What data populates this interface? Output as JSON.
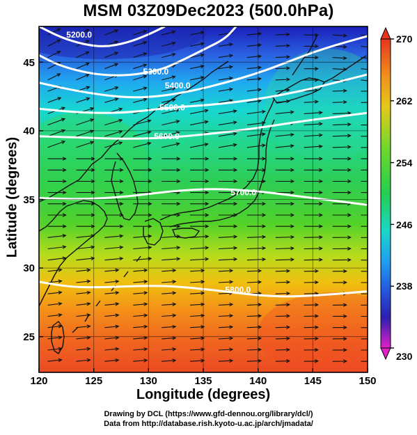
{
  "title": "MSM 03Z09Dec2023 (500.0hPa)",
  "xlabel": "Longitude (degrees)",
  "ylabel": "Latitude  (degrees)",
  "credit_line1": "Drawing by DCL (https://www.gfd-dennou.org/library/dcl/)",
  "credit_line2": "Data from http://database.rish.kyoto-u.ac.jp/arch/jmadata/",
  "colorbar": {
    "min": 230,
    "max": 270,
    "tick_labels": [
      "270",
      "262",
      "254",
      "246",
      "238",
      "230"
    ],
    "tick_values": [
      270,
      262,
      254,
      246,
      238,
      230
    ]
  },
  "chart_data": {
    "type": "heatmap",
    "field": "temperature (K) shading, geopotential height contours (m), wind vectors",
    "xlim": [
      120,
      150
    ],
    "ylim": [
      22.4,
      47.6
    ],
    "x_ticks": [
      120,
      125,
      130,
      135,
      140,
      145,
      150
    ],
    "x_tick_labels": [
      "120",
      "125",
      "130",
      "135",
      "140",
      "145",
      "150"
    ],
    "y_ticks": [
      25,
      30,
      35,
      40,
      45
    ],
    "y_tick_labels": [
      "25",
      "30",
      "35",
      "40",
      "45"
    ],
    "contours": [
      {
        "label": "5200.0",
        "value": 5200,
        "points": [
          [
            120,
            47.6
          ],
          [
            122,
            46.8
          ],
          [
            124,
            46.3
          ],
          [
            126,
            46.1
          ],
          [
            128,
            46.4
          ],
          [
            130,
            47.0
          ],
          [
            131.5,
            47.6
          ]
        ],
        "label_at": [
          122.5,
          47.0
        ]
      },
      {
        "label": "5300.0",
        "value": 5300,
        "points": [
          [
            120,
            45.5
          ],
          [
            122,
            44.7
          ],
          [
            125,
            44.1
          ],
          [
            128,
            44.0
          ],
          [
            131,
            44.4
          ],
          [
            133,
            45.1
          ],
          [
            135,
            45.9
          ],
          [
            137,
            46.7
          ],
          [
            138,
            47.6
          ]
        ],
        "label_at": [
          129.5,
          44.3
        ]
      },
      {
        "label": "5400.0",
        "value": 5400,
        "points": [
          [
            120,
            43.5
          ],
          [
            124,
            42.8
          ],
          [
            128,
            42.4
          ],
          [
            131,
            42.5
          ],
          [
            134,
            42.9
          ],
          [
            137,
            43.5
          ],
          [
            140,
            44.2
          ],
          [
            143,
            45.1
          ],
          [
            146,
            46.0
          ],
          [
            150,
            46.9
          ]
        ],
        "label_at": [
          131.5,
          43.3
        ]
      },
      {
        "label": "5500.0",
        "value": 5500,
        "points": [
          [
            120,
            41.6
          ],
          [
            124,
            41.3
          ],
          [
            128,
            41.3
          ],
          [
            132,
            41.7
          ],
          [
            136,
            41.9
          ],
          [
            140,
            42.3
          ],
          [
            144,
            42.9
          ],
          [
            147,
            43.5
          ],
          [
            150,
            44.1
          ]
        ],
        "label_at": [
          131.0,
          41.7
        ]
      },
      {
        "label": "5600.0",
        "value": 5600,
        "points": [
          [
            120,
            39.6
          ],
          [
            124,
            39.5
          ],
          [
            128,
            39.4
          ],
          [
            132,
            39.5
          ],
          [
            136,
            39.8
          ],
          [
            140,
            40.2
          ],
          [
            144,
            40.7
          ],
          [
            147,
            41.0
          ],
          [
            150,
            41.3
          ]
        ],
        "label_at": [
          130.5,
          39.6
        ]
      },
      {
        "label": "5700.0",
        "value": 5700,
        "points": [
          [
            120,
            35.1
          ],
          [
            124,
            35.0
          ],
          [
            128,
            35.2
          ],
          [
            132,
            35.6
          ],
          [
            136,
            35.8
          ],
          [
            140,
            35.6
          ],
          [
            143,
            35.3
          ],
          [
            147,
            34.9
          ],
          [
            150,
            34.6
          ]
        ],
        "label_at": [
          137.5,
          35.5
        ]
      },
      {
        "label": "5800.0",
        "value": 5800,
        "points": [
          [
            120,
            29.0
          ],
          [
            123,
            28.6
          ],
          [
            126,
            28.6
          ],
          [
            129,
            28.7
          ],
          [
            132,
            28.7
          ],
          [
            136,
            28.4
          ],
          [
            140,
            28.0
          ],
          [
            143,
            27.9
          ],
          [
            147,
            28.1
          ],
          [
            150,
            28.3
          ]
        ],
        "label_at": [
          137.0,
          28.4
        ]
      }
    ]
  }
}
